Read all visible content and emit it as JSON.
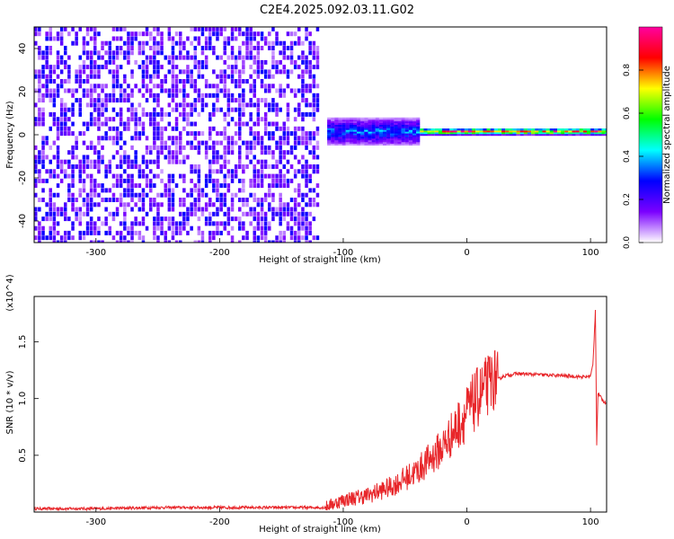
{
  "title": "C2E4.2025.092.03.11.G02",
  "chart_data": [
    {
      "type": "heatmap",
      "xlabel": "Height of straight line (km)",
      "ylabel": "Frequency (Hz)",
      "xlim": [
        -350,
        113
      ],
      "ylim": [
        -50,
        50
      ],
      "xticks": [
        -300,
        -200,
        -100,
        0,
        100
      ],
      "yticks": [
        -40,
        -20,
        0,
        20,
        40
      ],
      "colorbar": {
        "label": "Normalized spectral amplitude",
        "range": [
          0.0,
          1.0
        ],
        "ticks": [
          "0.0",
          "0.2",
          "0.4",
          "0.6",
          "0.8"
        ],
        "colors": [
          "#ffffff",
          "#7b00ff",
          "#0000ff",
          "#00ffff",
          "#00ff00",
          "#ffff00",
          "#ff0000",
          "#ff00a0"
        ]
      },
      "regions": [
        {
          "x": [
            -350,
            -120
          ],
          "description_level": 0.18,
          "spread_hz": 50
        },
        {
          "x": [
            -115,
            -40
          ],
          "description_level": 0.35,
          "spread_hz": 6
        },
        {
          "x": [
            -40,
            113
          ],
          "description_level": 0.8,
          "spread_hz": 1.5
        }
      ],
      "ridge_frequency_hz": 1.5
    },
    {
      "type": "line",
      "xlabel": "Height of straight line (km)",
      "ylabel": "SNR (10 * v/v)",
      "y_multiplier": "(x10^4)",
      "xlim": [
        -350,
        113
      ],
      "ylim": [
        0,
        1.9
      ],
      "xticks": [
        -300,
        -200,
        -100,
        0,
        100
      ],
      "yticks": [
        "0.5",
        "1.0",
        "1.5"
      ],
      "color": "#e8262a",
      "x": [
        -350,
        -300,
        -250,
        -200,
        -150,
        -115,
        -100,
        -80,
        -60,
        -40,
        -20,
        -10,
        0,
        10,
        20,
        30,
        40,
        60,
        80,
        95,
        100,
        102,
        104,
        105,
        106,
        110,
        113
      ],
      "values": [
        0.03,
        0.03,
        0.04,
        0.04,
        0.04,
        0.04,
        0.1,
        0.14,
        0.22,
        0.35,
        0.55,
        0.7,
        0.85,
        1.0,
        1.13,
        1.2,
        1.22,
        1.21,
        1.2,
        1.19,
        1.2,
        1.3,
        1.8,
        0.6,
        1.05,
        0.98,
        0.96
      ]
    }
  ]
}
